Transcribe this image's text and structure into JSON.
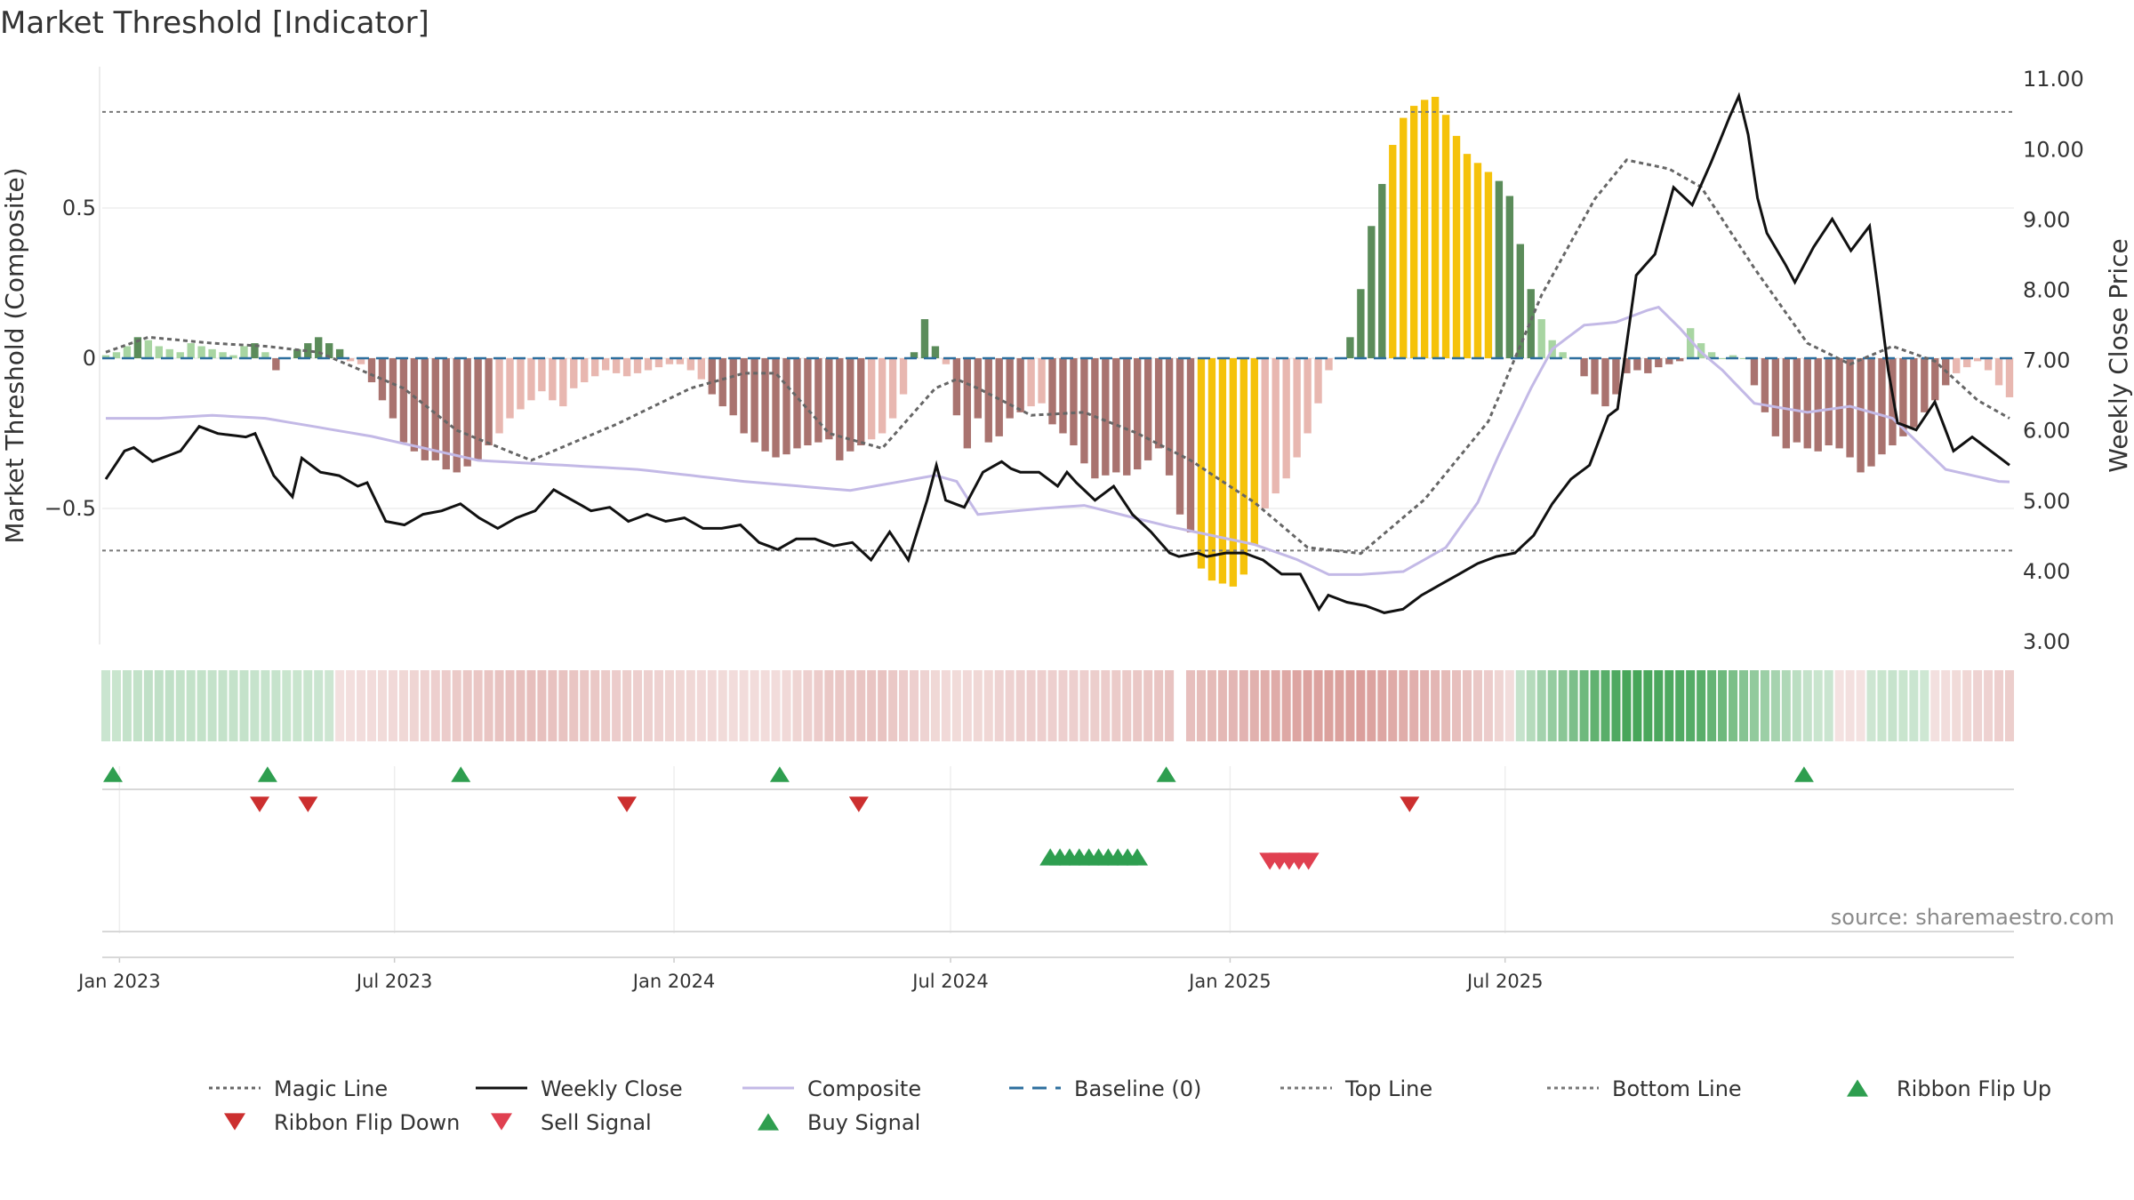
{
  "title": "Market Threshold [Indicator]",
  "source": "source: sharemaestro.com",
  "colors": {
    "magic_line": "#666666",
    "weekly_close": "#111111",
    "composite": "#c3b9e6",
    "baseline": "#2d6f9e",
    "threshold_lines": "#777777",
    "bar_strong_pos": "#5b8c5a",
    "bar_pos": "#a8d5a2",
    "bar_strong_neg": "#a9736f",
    "bar_neg": "#e8b7b0",
    "bar_extreme": "#f5c20a",
    "flip_up": "#2e9e4f",
    "flip_down": "#cc2f2f",
    "sell": "#e04050",
    "buy": "#2e9e4f"
  },
  "chart_data": {
    "type": "bar",
    "title": "Market Threshold [Indicator]",
    "x_type": "weekly dates",
    "x_start": "2022-12-23",
    "x_ticks": [
      "Jan 2023",
      "Jul 2023",
      "Jan 2024",
      "Jul 2024",
      "Jan 2025",
      "Jul 2025"
    ],
    "y_left": {
      "label": "Market Threshold (Composite)",
      "ticks": [
        "0.5",
        "0",
        "−0.5"
      ],
      "range": [
        -0.95,
        0.95
      ]
    },
    "y_right": {
      "label": "Weekly Close Price",
      "ticks": [
        "11.00",
        "10.00",
        "9.00",
        "8.00",
        "7.00",
        "6.00",
        "5.00",
        "4.00",
        "3.00"
      ],
      "range": [
        3.0,
        11.0
      ]
    },
    "top_line": 0.82,
    "bottom_line": -0.64,
    "composite_keypoints": [
      [
        0,
        -0.2
      ],
      [
        5,
        -0.2
      ],
      [
        10,
        -0.19
      ],
      [
        15,
        -0.2
      ],
      [
        25,
        -0.26
      ],
      [
        35,
        -0.34
      ],
      [
        50,
        -0.37
      ],
      [
        60,
        -0.41
      ],
      [
        70,
        -0.44
      ],
      [
        78,
        -0.39
      ],
      [
        80,
        -0.41
      ],
      [
        82,
        -0.52
      ],
      [
        88,
        -0.5
      ],
      [
        92,
        -0.49
      ],
      [
        100,
        -0.56
      ],
      [
        108,
        -0.62
      ],
      [
        112,
        -0.67
      ],
      [
        115,
        -0.72
      ],
      [
        118,
        -0.72
      ],
      [
        122,
        -0.71
      ],
      [
        126,
        -0.63
      ],
      [
        129,
        -0.48
      ],
      [
        131,
        -0.32
      ],
      [
        134,
        -0.1
      ],
      [
        136,
        0.03
      ],
      [
        139,
        0.11
      ],
      [
        142,
        0.12
      ],
      [
        145,
        0.16
      ],
      [
        146,
        0.17
      ],
      [
        148,
        0.1
      ],
      [
        150,
        0.02
      ],
      [
        152,
        -0.04
      ],
      [
        155,
        -0.15
      ],
      [
        160,
        -0.18
      ],
      [
        164,
        -0.16
      ],
      [
        168,
        -0.2
      ],
      [
        173,
        -0.37
      ],
      [
        178,
        -0.41
      ],
      [
        184,
        -0.42
      ],
      [
        190,
        -0.46
      ],
      [
        197,
        -0.44
      ]
    ],
    "magic_keypoints": [
      [
        0,
        0.02
      ],
      [
        4,
        0.07
      ],
      [
        10,
        0.05
      ],
      [
        15,
        0.04
      ],
      [
        20,
        0.02
      ],
      [
        28,
        -0.1
      ],
      [
        33,
        -0.24
      ],
      [
        40,
        -0.34
      ],
      [
        48,
        -0.22
      ],
      [
        55,
        -0.1
      ],
      [
        60,
        -0.05
      ],
      [
        63,
        -0.05
      ],
      [
        68,
        -0.25
      ],
      [
        73,
        -0.3
      ],
      [
        78,
        -0.1
      ],
      [
        80,
        -0.07
      ],
      [
        82,
        -0.1
      ],
      [
        87,
        -0.19
      ],
      [
        92,
        -0.18
      ],
      [
        97,
        -0.25
      ],
      [
        102,
        -0.34
      ],
      [
        108,
        -0.48
      ],
      [
        113,
        -0.63
      ],
      [
        118,
        -0.65
      ],
      [
        124,
        -0.47
      ],
      [
        130,
        -0.21
      ],
      [
        135,
        0.21
      ],
      [
        140,
        0.53
      ],
      [
        143,
        0.66
      ],
      [
        147,
        0.63
      ],
      [
        150,
        0.57
      ],
      [
        155,
        0.3
      ],
      [
        160,
        0.05
      ],
      [
        164,
        -0.02
      ],
      [
        168,
        0.04
      ],
      [
        172,
        -0.01
      ],
      [
        176,
        -0.14
      ],
      [
        181,
        -0.24
      ],
      [
        187,
        -0.31
      ],
      [
        192,
        -0.27
      ],
      [
        196,
        -0.13
      ],
      [
        197,
        -0.12
      ]
    ],
    "close_keypoints": [
      [
        0,
        5.3
      ],
      [
        2,
        5.7
      ],
      [
        3,
        5.75
      ],
      [
        5,
        5.55
      ],
      [
        6,
        5.6
      ],
      [
        8,
        5.7
      ],
      [
        10,
        6.05
      ],
      [
        12,
        5.95
      ],
      [
        15,
        5.9
      ],
      [
        16,
        5.95
      ],
      [
        18,
        5.35
      ],
      [
        20,
        5.05
      ],
      [
        21,
        5.6
      ],
      [
        23,
        5.4
      ],
      [
        25,
        5.35
      ],
      [
        27,
        5.2
      ],
      [
        28,
        5.25
      ],
      [
        30,
        4.7
      ],
      [
        32,
        4.65
      ],
      [
        34,
        4.8
      ],
      [
        36,
        4.85
      ],
      [
        38,
        4.95
      ],
      [
        40,
        4.75
      ],
      [
        42,
        4.6
      ],
      [
        44,
        4.75
      ],
      [
        46,
        4.85
      ],
      [
        48,
        5.15
      ],
      [
        50,
        5.0
      ],
      [
        52,
        4.85
      ],
      [
        54,
        4.9
      ],
      [
        56,
        4.7
      ],
      [
        58,
        4.8
      ],
      [
        60,
        4.7
      ],
      [
        62,
        4.75
      ],
      [
        64,
        4.6
      ],
      [
        66,
        4.6
      ],
      [
        68,
        4.65
      ],
      [
        70,
        4.4
      ],
      [
        72,
        4.3
      ],
      [
        74,
        4.45
      ],
      [
        76,
        4.45
      ],
      [
        78,
        4.35
      ],
      [
        80,
        4.4
      ],
      [
        82,
        4.15
      ],
      [
        84,
        4.55
      ],
      [
        86,
        4.15
      ],
      [
        88,
        5.0
      ],
      [
        89,
        5.5
      ],
      [
        90,
        5.0
      ],
      [
        92,
        4.9
      ],
      [
        94,
        5.4
      ],
      [
        96,
        5.55
      ],
      [
        97,
        5.45
      ],
      [
        98,
        5.4
      ],
      [
        100,
        5.4
      ],
      [
        102,
        5.2
      ],
      [
        103,
        5.4
      ],
      [
        104,
        5.25
      ],
      [
        106,
        5.0
      ],
      [
        108,
        5.2
      ],
      [
        110,
        4.8
      ],
      [
        112,
        4.55
      ],
      [
        114,
        4.25
      ],
      [
        115,
        4.2
      ],
      [
        117,
        4.25
      ],
      [
        118,
        4.2
      ],
      [
        120,
        4.25
      ],
      [
        122,
        4.25
      ],
      [
        124,
        4.15
      ],
      [
        126,
        3.95
      ],
      [
        128,
        3.95
      ],
      [
        130,
        3.45
      ],
      [
        131,
        3.65
      ],
      [
        133,
        3.55
      ],
      [
        135,
        3.5
      ],
      [
        137,
        3.4
      ],
      [
        139,
        3.45
      ],
      [
        141,
        3.65
      ],
      [
        143,
        3.8
      ],
      [
        145,
        3.95
      ],
      [
        147,
        4.1
      ],
      [
        149,
        4.2
      ],
      [
        151,
        4.25
      ],
      [
        153,
        4.5
      ],
      [
        155,
        4.95
      ],
      [
        157,
        5.3
      ],
      [
        159,
        5.5
      ],
      [
        161,
        6.2
      ],
      [
        162,
        6.3
      ],
      [
        164,
        8.2
      ],
      [
        166,
        8.5
      ],
      [
        168,
        9.45
      ],
      [
        170,
        9.2
      ],
      [
        172,
        9.8
      ],
      [
        174,
        10.45
      ],
      [
        175,
        10.75
      ],
      [
        176,
        10.2
      ],
      [
        177,
        9.3
      ],
      [
        178,
        8.8
      ],
      [
        180,
        8.35
      ],
      [
        181,
        8.1
      ],
      [
        183,
        8.6
      ],
      [
        185,
        9.0
      ],
      [
        187,
        8.55
      ],
      [
        189,
        8.9
      ],
      [
        190,
        7.9
      ],
      [
        191,
        6.85
      ],
      [
        192,
        6.1
      ],
      [
        194,
        6.0
      ],
      [
        196,
        6.4
      ],
      [
        198,
        5.7
      ],
      [
        200,
        5.9
      ],
      [
        202,
        5.7
      ],
      [
        204,
        5.5
      ]
    ],
    "bar_values_note": "composite bars per week (left axis)",
    "bars": [
      0.01,
      0.02,
      0.04,
      0.07,
      0.06,
      0.04,
      0.03,
      0.02,
      0.05,
      0.04,
      0.03,
      0.02,
      0.01,
      0.04,
      0.05,
      0.02,
      -0.04,
      0.0,
      0.03,
      0.05,
      0.07,
      0.05,
      0.03,
      -0.01,
      -0.02,
      -0.08,
      -0.14,
      -0.2,
      -0.28,
      -0.31,
      -0.34,
      -0.34,
      -0.37,
      -0.38,
      -0.36,
      -0.34,
      -0.29,
      -0.25,
      -0.2,
      -0.17,
      -0.14,
      -0.11,
      -0.14,
      -0.16,
      -0.1,
      -0.08,
      -0.06,
      -0.04,
      -0.05,
      -0.06,
      -0.05,
      -0.04,
      -0.03,
      -0.02,
      -0.02,
      -0.04,
      -0.07,
      -0.12,
      -0.16,
      -0.19,
      -0.25,
      -0.28,
      -0.31,
      -0.33,
      -0.32,
      -0.3,
      -0.29,
      -0.28,
      -0.27,
      -0.34,
      -0.31,
      -0.29,
      -0.27,
      -0.25,
      -0.2,
      -0.12,
      0.02,
      0.13,
      0.04,
      -0.02,
      -0.19,
      -0.3,
      -0.2,
      -0.28,
      -0.26,
      -0.2,
      -0.18,
      -0.16,
      -0.15,
      -0.22,
      -0.25,
      -0.29,
      -0.35,
      -0.4,
      -0.39,
      -0.38,
      -0.39,
      -0.37,
      -0.34,
      -0.3,
      -0.39,
      -0.52,
      -0.58,
      -0.7,
      -0.74,
      -0.75,
      -0.76,
      -0.72,
      -0.62,
      -0.5,
      -0.45,
      -0.4,
      -0.33,
      -0.25,
      -0.15,
      -0.04,
      0.0,
      0.07,
      0.23,
      0.44,
      0.58,
      0.71,
      0.8,
      0.84,
      0.86,
      0.87,
      0.81,
      0.74,
      0.68,
      0.65,
      0.62,
      0.59,
      0.54,
      0.38,
      0.23,
      0.13,
      0.06,
      0.02,
      0.0,
      -0.06,
      -0.12,
      -0.16,
      -0.12,
      -0.05,
      -0.04,
      -0.05,
      -0.03,
      -0.02,
      -0.01,
      0.1,
      0.05,
      0.02,
      0.0,
      0.01,
      0.0,
      -0.09,
      -0.18,
      -0.26,
      -0.3,
      -0.28,
      -0.3,
      -0.31,
      -0.29,
      -0.3,
      -0.33,
      -0.38,
      -0.36,
      -0.32,
      -0.29,
      -0.26,
      -0.23,
      -0.18,
      -0.14,
      -0.09,
      -0.05,
      -0.03,
      -0.01,
      -0.04,
      -0.09,
      -0.13
    ],
    "signals": {
      "ribbon_flip_up_weeks": [
        0,
        16,
        36,
        69,
        109,
        175
      ],
      "ribbon_flip_down_weeks": [
        15,
        20,
        53,
        77,
        134
      ],
      "buy_weeks": [
        97,
        98,
        99,
        100,
        101,
        102,
        103,
        104,
        105,
        106
      ],
      "sell_weeks": [
        120,
        121,
        122,
        123,
        124
      ]
    }
  },
  "legend": [
    {
      "label": "Magic Line",
      "symbol": "dotted-line",
      "color": "#666666"
    },
    {
      "label": "Weekly Close",
      "symbol": "solid-line",
      "color": "#111111"
    },
    {
      "label": "Composite",
      "symbol": "solid-line",
      "color": "#c3b9e6"
    },
    {
      "label": "Baseline (0)",
      "symbol": "dashed-line",
      "color": "#2d6f9e"
    },
    {
      "label": "Top Line",
      "symbol": "dotted-line",
      "color": "#777777"
    },
    {
      "label": "Bottom Line",
      "symbol": "dotted-line",
      "color": "#777777"
    },
    {
      "label": "Ribbon Flip Up",
      "symbol": "triangle-up",
      "color": "#2e9e4f"
    },
    {
      "label": "Ribbon Flip Down",
      "symbol": "triangle-down",
      "color": "#cc2f2f"
    },
    {
      "label": "Sell Signal",
      "symbol": "triangle-down",
      "color": "#e04050"
    },
    {
      "label": "Buy Signal",
      "symbol": "triangle-up",
      "color": "#2e9e4f"
    }
  ]
}
